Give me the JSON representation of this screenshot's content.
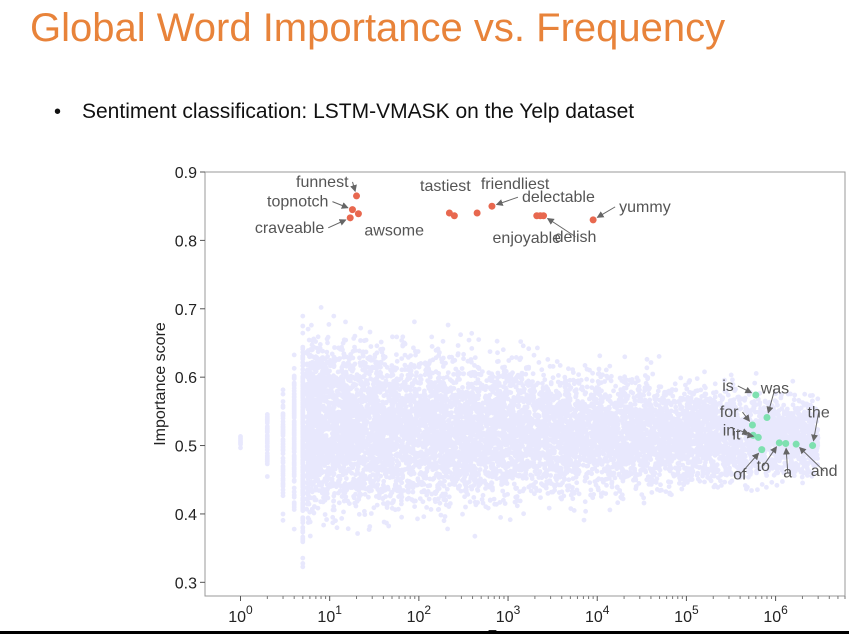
{
  "slide": {
    "title": "Global Word Importance vs. Frequency",
    "bullet": "Sentiment classification: LSTM-VMASK on the Yelp dataset",
    "bullet_symbol": "•"
  },
  "colors": {
    "title": "#e8833a",
    "scatter": "#4a4af0",
    "high_words": "#e8684f",
    "low_words": "#7ee0b0",
    "annotation_text": "#555555"
  },
  "chart_data": {
    "type": "scatter",
    "title": "",
    "xlabel": "Frequency",
    "ylabel": "Importance score",
    "xscale": "log",
    "xlim": [
      0.4,
      6000000
    ],
    "ylim": [
      0.28,
      0.9
    ],
    "grid": false,
    "x_ticks": [
      {
        "value": 1,
        "base": "10",
        "exp": "0"
      },
      {
        "value": 10,
        "base": "10",
        "exp": "1"
      },
      {
        "value": 100,
        "base": "10",
        "exp": "2"
      },
      {
        "value": 1000,
        "base": "10",
        "exp": "3"
      },
      {
        "value": 10000,
        "base": "10",
        "exp": "4"
      },
      {
        "value": 100000,
        "base": "10",
        "exp": "5"
      },
      {
        "value": 1000000,
        "base": "10",
        "exp": "6"
      }
    ],
    "y_ticks": [
      {
        "value": 0.3,
        "label": "0.3"
      },
      {
        "value": 0.4,
        "label": "0.4"
      },
      {
        "value": 0.5,
        "label": "0.5"
      },
      {
        "value": 0.6,
        "label": "0.6"
      },
      {
        "value": 0.7,
        "label": "0.7"
      },
      {
        "value": 0.8,
        "label": "0.8"
      },
      {
        "value": 0.9,
        "label": "0.9"
      }
    ],
    "highlighted_high": [
      {
        "word": "funnest",
        "x": 20,
        "y": 0.865
      },
      {
        "word": "topnotch",
        "x": 18,
        "y": 0.845
      },
      {
        "word": "craveable",
        "x": 17,
        "y": 0.833
      },
      {
        "word": "awsome",
        "x": 21,
        "y": 0.839
      },
      {
        "word": "tastiest",
        "x": 220,
        "y": 0.84
      },
      {
        "word": "friendliest",
        "x": 450,
        "y": 0.84
      },
      {
        "word": "delectable",
        "x": 660,
        "y": 0.85
      },
      {
        "word": "enjoyable",
        "x": 2100,
        "y": 0.836
      },
      {
        "word": "delish",
        "x": 2500,
        "y": 0.836
      },
      {
        "word": "yummy",
        "x": 9000,
        "y": 0.83
      },
      {
        "word": "",
        "x": 250,
        "y": 0.836
      },
      {
        "word": "",
        "x": 2300,
        "y": 0.836
      }
    ],
    "highlighted_low": [
      {
        "word": "is",
        "x": 600000,
        "y": 0.574
      },
      {
        "word": "was",
        "x": 800000,
        "y": 0.541
      },
      {
        "word": "for",
        "x": 550000,
        "y": 0.53
      },
      {
        "word": "in",
        "x": 560000,
        "y": 0.515
      },
      {
        "word": "it",
        "x": 640000,
        "y": 0.512
      },
      {
        "word": "the",
        "x": 2600000,
        "y": 0.5
      },
      {
        "word": "of",
        "x": 700000,
        "y": 0.494
      },
      {
        "word": "to",
        "x": 1100000,
        "y": 0.504
      },
      {
        "word": "a",
        "x": 1300000,
        "y": 0.503
      },
      {
        "word": "and",
        "x": 1700000,
        "y": 0.502
      }
    ],
    "cloud": {
      "description": "dense scatter of per-word importance scores, centered near 0.53 at low frequency and narrowing toward 0.5 at high frequency",
      "center_y": 0.53,
      "x_range": [
        1,
        3000000
      ]
    }
  }
}
